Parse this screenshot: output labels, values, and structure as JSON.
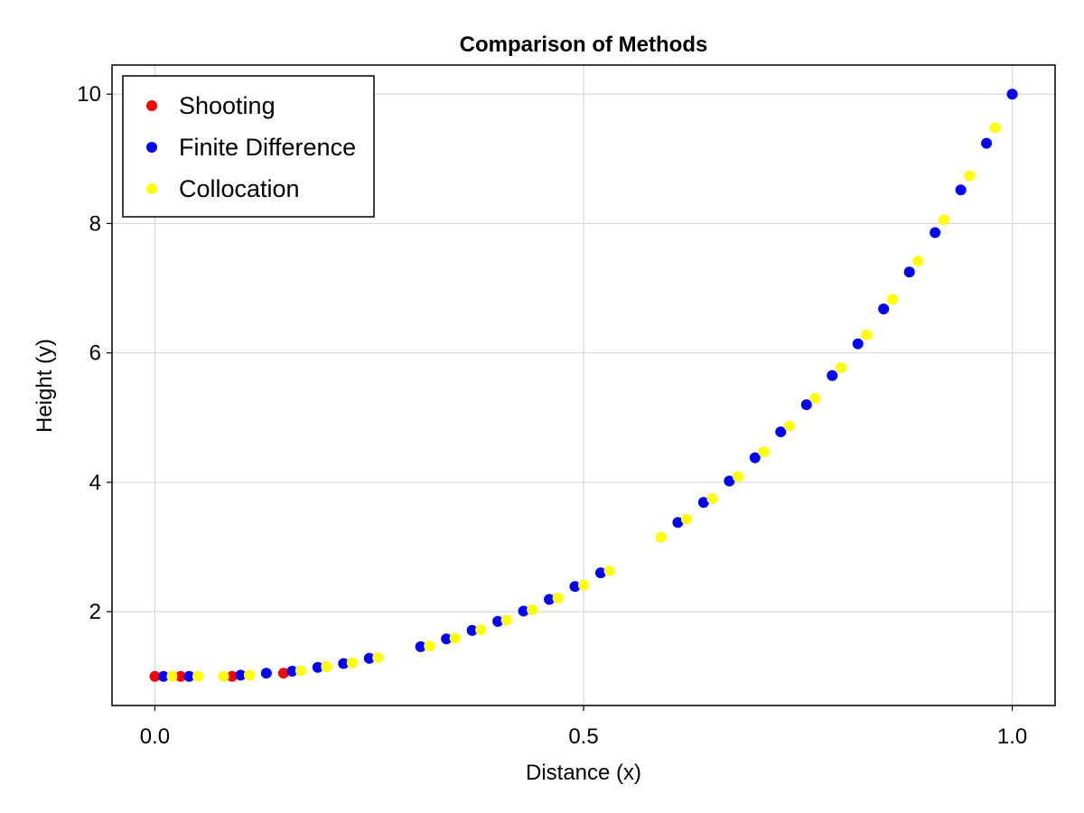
{
  "chart_data": {
    "type": "scatter",
    "title": "Comparison of Methods",
    "xlabel": "Distance (x)",
    "ylabel": "Height (y)",
    "xlim": [
      -0.05,
      1.05
    ],
    "ylim": [
      0.55,
      10.45
    ],
    "xticks": [
      0.0,
      0.5,
      1.0
    ],
    "xtick_labels": [
      "0.0",
      "0.5",
      "1.0"
    ],
    "yticks": [
      2,
      4,
      6,
      8,
      10
    ],
    "ytick_labels": [
      "2",
      "4",
      "6",
      "8",
      "10"
    ],
    "grid": true,
    "legend_position": "top-left",
    "series": [
      {
        "name": "Shooting",
        "color": "#ff0000",
        "x": [
          0.0,
          0.03,
          0.09,
          0.15
        ],
        "y": [
          1.0,
          1.0,
          1.0,
          1.05
        ]
      },
      {
        "name": "Finite Difference",
        "color": "#0000ff",
        "x": [
          0.01,
          0.04,
          0.1,
          0.13,
          0.16,
          0.19,
          0.22,
          0.25,
          0.31,
          0.34,
          0.37,
          0.4,
          0.43,
          0.46,
          0.49,
          0.52,
          0.61,
          0.64,
          0.67,
          0.7,
          0.73,
          0.76,
          0.79,
          0.82,
          0.85,
          0.88,
          0.91,
          0.94,
          0.97,
          1.0
        ],
        "y": [
          1.0,
          1.0,
          1.02,
          1.05,
          1.08,
          1.14,
          1.2,
          1.28,
          1.46,
          1.58,
          1.71,
          1.85,
          2.01,
          2.19,
          2.39,
          2.6,
          3.38,
          3.69,
          4.02,
          4.38,
          4.78,
          5.2,
          5.65,
          6.14,
          6.68,
          7.25,
          7.86,
          8.52,
          9.24,
          10.0
        ]
      },
      {
        "name": "Collocation",
        "color": "#ffff00",
        "x": [
          0.02,
          0.05,
          0.08,
          0.11,
          0.17,
          0.2,
          0.23,
          0.26,
          0.32,
          0.35,
          0.38,
          0.41,
          0.44,
          0.47,
          0.5,
          0.53,
          0.59,
          0.62,
          0.65,
          0.68,
          0.71,
          0.74,
          0.77,
          0.8,
          0.83,
          0.86,
          0.89,
          0.92,
          0.95,
          0.98
        ],
        "y": [
          1.0,
          1.0,
          1.0,
          1.02,
          1.09,
          1.15,
          1.21,
          1.29,
          1.47,
          1.59,
          1.72,
          1.87,
          2.03,
          2.21,
          2.41,
          2.63,
          3.15,
          3.43,
          3.75,
          4.09,
          4.47,
          4.87,
          5.3,
          5.77,
          6.28,
          6.83,
          7.42,
          8.06,
          8.74,
          9.48
        ]
      }
    ]
  }
}
